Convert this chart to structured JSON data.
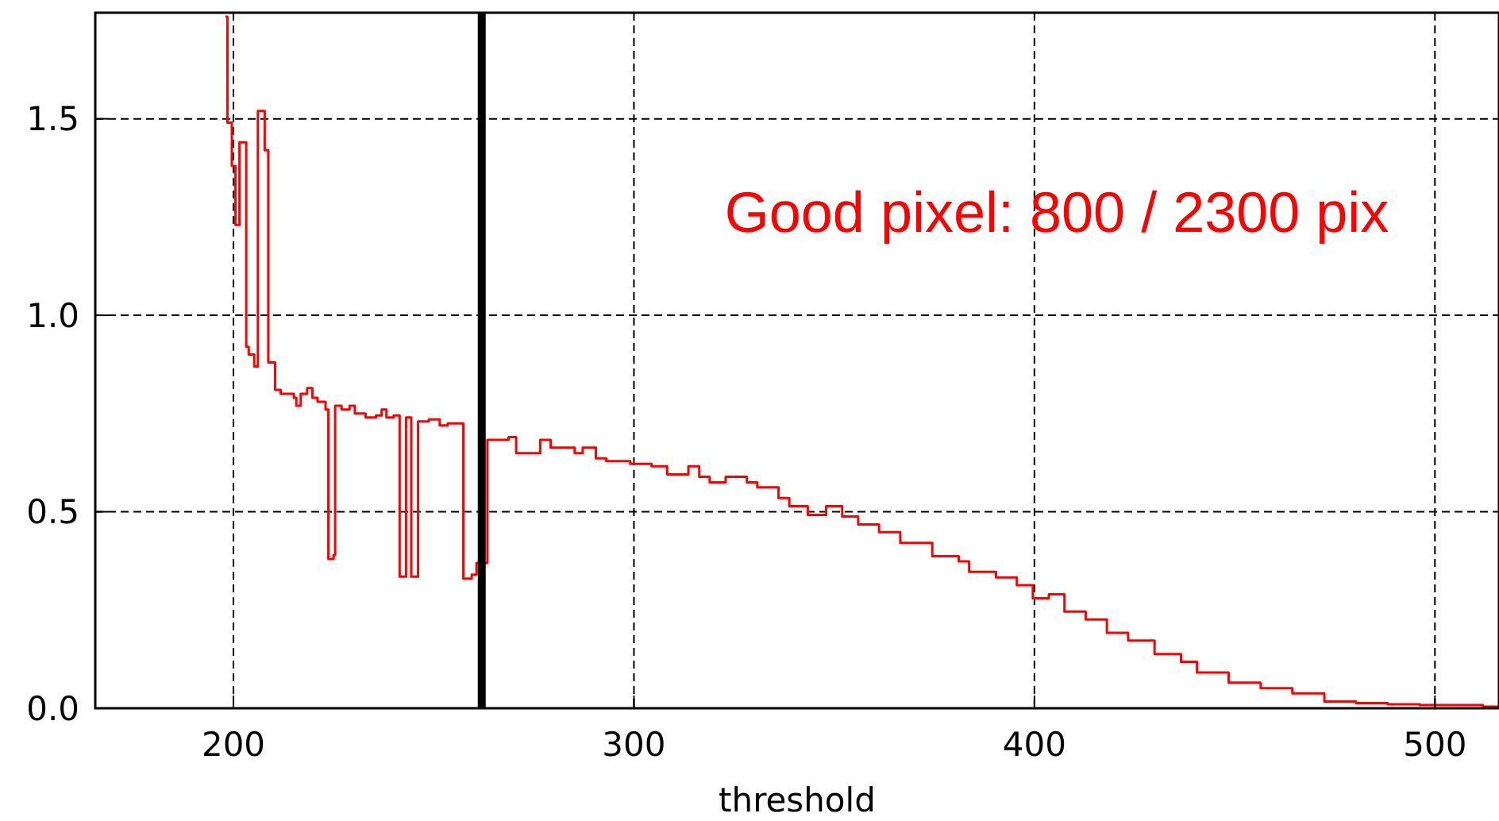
{
  "chart_data": {
    "type": "step",
    "xlabel": "threshold",
    "annotations": [
      "Good pixel: 800 / 2300 pix"
    ],
    "xlim": [
      165.5,
      516
    ],
    "ylim": [
      0,
      1.77
    ],
    "xticks": [
      200,
      300,
      400,
      500
    ],
    "yticks": [
      {
        "value": 0,
        "label": "0.0"
      },
      {
        "value": 0.5,
        "label": "0.5"
      },
      {
        "value": 1,
        "label": "1.0"
      },
      {
        "value": 1.5,
        "label": "1.5"
      }
    ],
    "grid": true,
    "ref_lines": [
      {
        "axis": "x",
        "value": 262,
        "color": "#000000"
      }
    ],
    "series": [
      {
        "color": "#ff0000",
        "x": [
          198,
          198.5,
          199.6,
          200.5,
          201.5,
          203.2,
          203.8,
          205.2,
          206.1,
          207.8,
          208.7,
          210.4,
          211.8,
          215.1,
          215.7,
          216.8,
          218.4,
          219.7,
          221,
          223,
          223.7,
          225,
          225.4,
          227,
          229,
          230.3,
          233,
          235.6,
          237,
          238.2,
          240,
          241.5,
          243.1,
          244.4,
          246.1,
          248.8,
          251.5,
          253.5,
          257.4,
          259.5,
          260.7,
          263.4,
          268.7,
          270.6,
          276.6,
          279.2,
          285.2,
          287.2,
          290.5,
          293.1,
          299.1,
          304.4,
          308.3,
          313.6,
          316.3,
          318.9,
          322.9,
          328.2,
          330.8,
          336.1,
          338.8,
          343.4,
          348,
          352,
          356,
          361.2,
          366.5,
          371.8,
          374.5,
          381.1,
          383.7,
          390.4,
          395.6,
          399.6,
          403.6,
          407.5,
          412.8,
          418.1,
          423.4,
          430,
          436.6,
          440.6,
          448.5,
          456.5,
          464.4,
          472.4,
          480.3,
          488.2,
          496.2,
          512,
          516
        ],
        "values": [
          1.76,
          1.49,
          1.38,
          1.23,
          1.44,
          0.92,
          0.9,
          0.87,
          1.52,
          1.42,
          0.88,
          0.81,
          0.8,
          0.79,
          0.77,
          0.8,
          0.815,
          0.79,
          0.78,
          0.76,
          0.38,
          0.39,
          0.77,
          0.76,
          0.77,
          0.75,
          0.74,
          0.745,
          0.76,
          0.74,
          0.745,
          0.335,
          0.74,
          0.335,
          0.73,
          0.735,
          0.72,
          0.725,
          0.33,
          0.34,
          0.37,
          0.683,
          0.69,
          0.649,
          0.683,
          0.663,
          0.649,
          0.663,
          0.636,
          0.629,
          0.622,
          0.616,
          0.595,
          0.616,
          0.589,
          0.575,
          0.589,
          0.575,
          0.562,
          0.535,
          0.514,
          0.492,
          0.514,
          0.488,
          0.468,
          0.448,
          0.421,
          0.421,
          0.387,
          0.374,
          0.347,
          0.333,
          0.313,
          0.28,
          0.29,
          0.246,
          0.226,
          0.192,
          0.172,
          0.138,
          0.118,
          0.091,
          0.065,
          0.051,
          0.038,
          0.017,
          0.013,
          0.01,
          0.008,
          0.004,
          0.004
        ]
      }
    ]
  }
}
